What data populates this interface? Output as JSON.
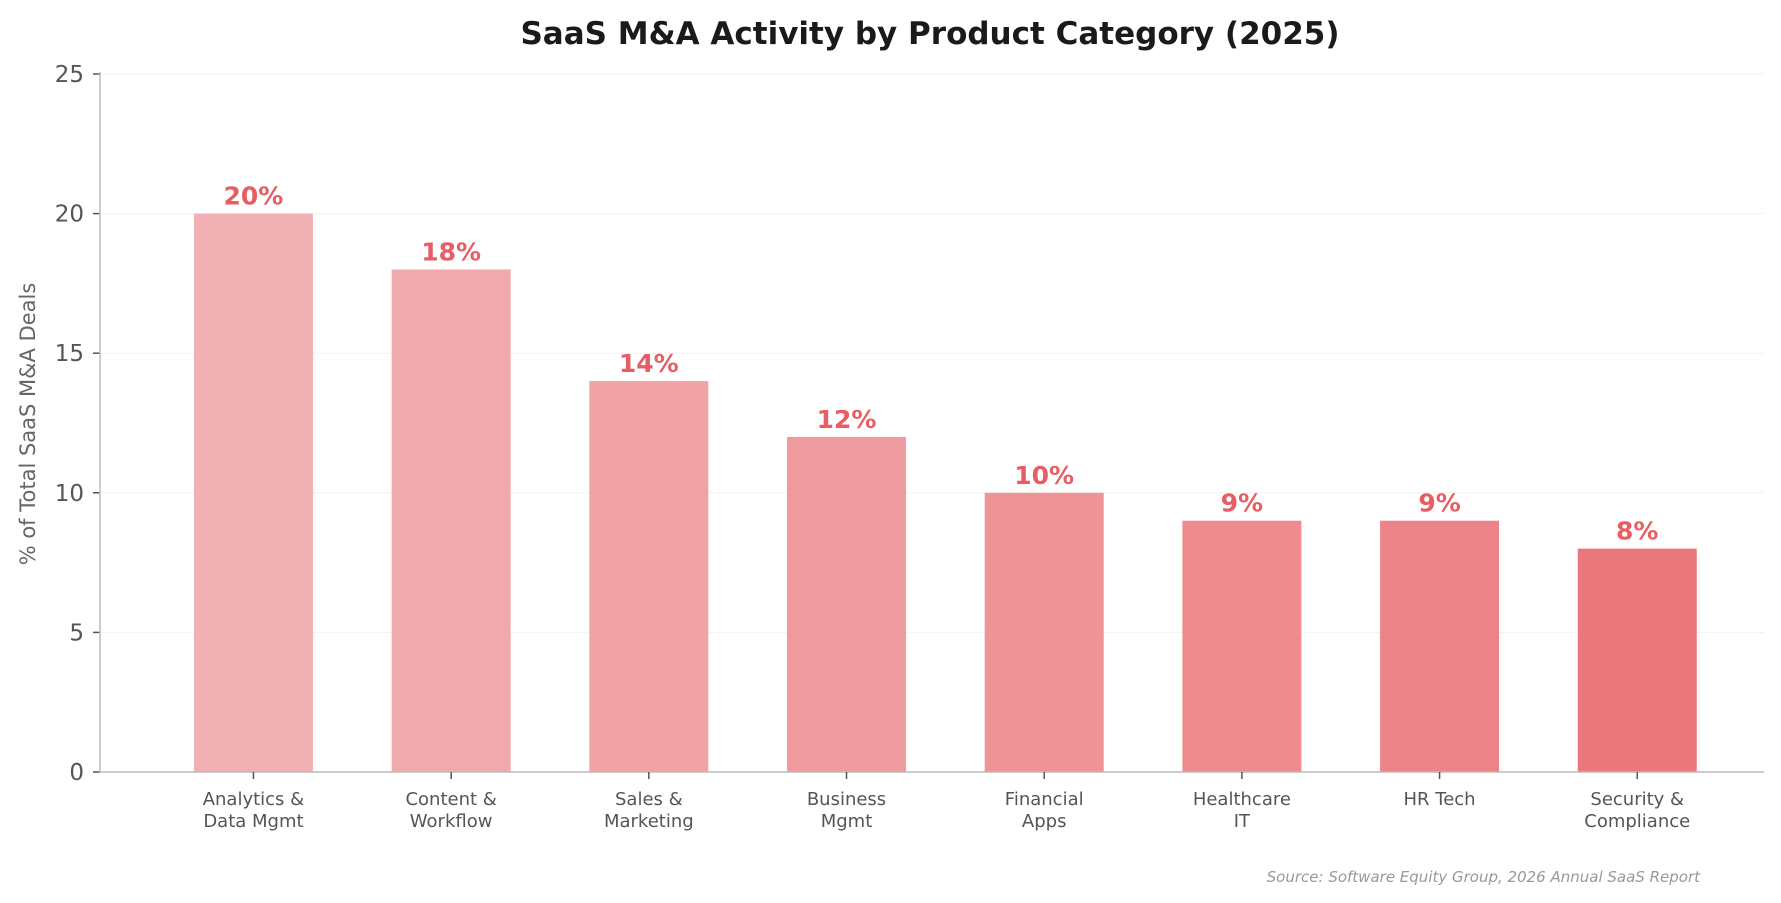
{
  "chart_data": {
    "type": "bar",
    "title": "SaaS M&A Activity by Product Category (2025)",
    "xlabel": "",
    "ylabel": "% of Total SaaS M&A Deals",
    "ylim": [
      0,
      25
    ],
    "yticks": [
      0,
      5,
      10,
      15,
      20,
      25
    ],
    "grid": true,
    "categories": [
      "Analytics &\nData Mgmt",
      "Content &\nWorkflow",
      "Sales &\nMarketing",
      "Business\nMgmt",
      "Financial\nApps",
      "Healthcare\nIT",
      "HR Tech",
      "Security &\nCompliance"
    ],
    "values": [
      20,
      18,
      14,
      12,
      10,
      9,
      9,
      8
    ],
    "data_labels": [
      "20%",
      "18%",
      "14%",
      "12%",
      "10%",
      "9%",
      "9%",
      "8%"
    ],
    "bar_colors": [
      "#f1b0b3",
      "#f0a9ac",
      "#f0a2a5",
      "#ef9a9e",
      "#ee9396",
      "#ed8b8f",
      "#eb8387",
      "#e9777b"
    ],
    "label_color": "#e85d63",
    "source": "Source: Software Equity Group, 2026 Annual SaaS Report"
  }
}
